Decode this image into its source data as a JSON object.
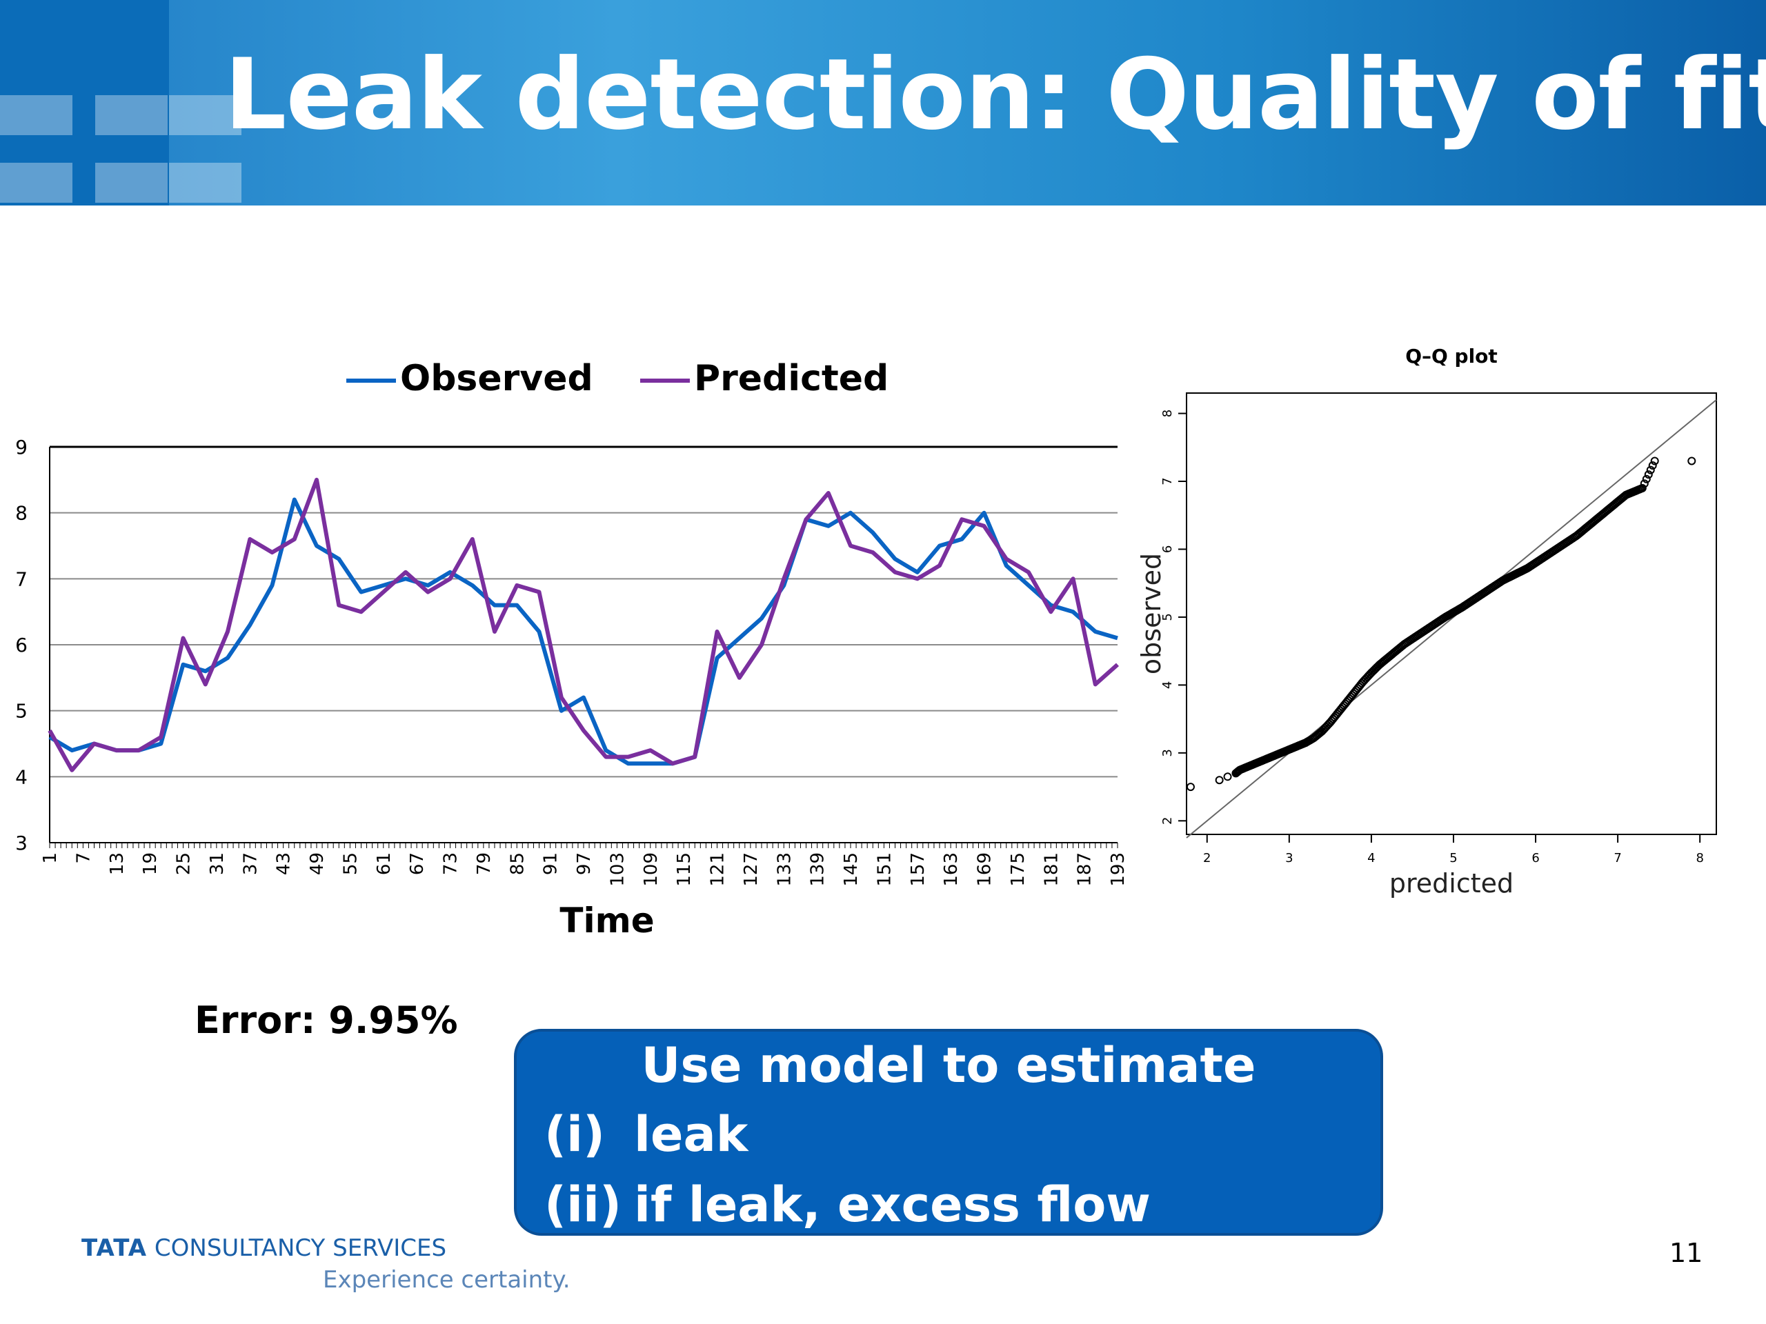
{
  "slide": {
    "title": "Leak detection: Quality of fit",
    "error_label": "Error: 9.95%",
    "callout": {
      "title": "Use model to estimate",
      "items": [
        {
          "num": "(i)",
          "text": "leak"
        },
        {
          "num": "(ii)",
          "text": "if leak, excess flow"
        }
      ]
    },
    "footer": {
      "brand_tata": "TATA",
      "brand_rest": "CONSULTANCY SERVICES",
      "tagline": "Experience certainty.",
      "page_number": "11"
    }
  },
  "colors": {
    "observed": "#0a64c4",
    "predicted": "#7a2f9e",
    "header_accent": "#1f7cc4",
    "callout_bg": "#0560b8"
  },
  "chart_data": [
    {
      "type": "line",
      "title": "",
      "xlabel": "Time",
      "ylabel": "",
      "legend": "top",
      "grid": true,
      "ylim": [
        3,
        9
      ],
      "yticks": [
        3,
        4,
        5,
        6,
        7,
        8,
        9
      ],
      "xtick_labels": [
        "1",
        "7",
        "13",
        "19",
        "25",
        "31",
        "37",
        "43",
        "49",
        "55",
        "61",
        "67",
        "73",
        "79",
        "85",
        "91",
        "97",
        "103",
        "109",
        "115",
        "121",
        "127",
        "133",
        "139",
        "145",
        "151",
        "157",
        "163",
        "169",
        "175",
        "181",
        "187",
        "193"
      ],
      "x": [
        1,
        5,
        9,
        13,
        17,
        21,
        25,
        29,
        33,
        37,
        41,
        45,
        49,
        53,
        57,
        61,
        65,
        69,
        73,
        77,
        81,
        85,
        89,
        93,
        97,
        101,
        105,
        109,
        113,
        117,
        121,
        125,
        129,
        133,
        137,
        141,
        145,
        149,
        153,
        157,
        161,
        165,
        169,
        173,
        177,
        181,
        185,
        189,
        193
      ],
      "series": [
        {
          "name": "Observed",
          "values": [
            4.6,
            4.4,
            4.5,
            4.4,
            4.4,
            4.5,
            5.7,
            5.6,
            5.8,
            6.3,
            6.9,
            8.2,
            7.5,
            7.3,
            6.8,
            6.9,
            7.0,
            6.9,
            7.1,
            6.9,
            6.6,
            6.6,
            6.2,
            5.0,
            5.2,
            4.4,
            4.2,
            4.2,
            4.2,
            4.3,
            5.8,
            6.1,
            6.4,
            6.9,
            7.9,
            7.8,
            8.0,
            7.7,
            7.3,
            7.1,
            7.5,
            7.6,
            8.0,
            7.2,
            6.9,
            6.6,
            6.5,
            6.2,
            6.1
          ]
        },
        {
          "name": "Predicted",
          "values": [
            4.7,
            4.1,
            4.5,
            4.4,
            4.4,
            4.6,
            6.1,
            5.4,
            6.2,
            7.6,
            7.4,
            7.6,
            8.5,
            6.6,
            6.5,
            6.8,
            7.1,
            6.8,
            7.0,
            7.6,
            6.2,
            6.9,
            6.8,
            5.2,
            4.7,
            4.3,
            4.3,
            4.4,
            4.2,
            4.3,
            6.2,
            5.5,
            6.0,
            7.0,
            7.9,
            8.3,
            7.5,
            7.4,
            7.1,
            7.0,
            7.2,
            7.9,
            7.8,
            7.3,
            7.1,
            6.5,
            7.0,
            5.4,
            5.7
          ]
        }
      ]
    },
    {
      "type": "scatter",
      "title": "Q–Q plot",
      "xlabel": "predicted",
      "ylabel": "observed",
      "xlim": [
        2,
        8
      ],
      "ylim": [
        2,
        8
      ],
      "xticks": [
        2,
        3,
        4,
        5,
        6,
        7,
        8
      ],
      "yticks": [
        2,
        3,
        4,
        5,
        6,
        7,
        8
      ],
      "reference_line": "y = x",
      "points": [
        [
          1.8,
          2.5
        ],
        [
          2.15,
          2.6
        ],
        [
          2.25,
          2.65
        ],
        [
          2.35,
          2.7
        ],
        [
          2.4,
          2.75
        ],
        [
          2.5,
          2.8
        ],
        [
          2.6,
          2.85
        ],
        [
          2.7,
          2.9
        ],
        [
          2.8,
          2.95
        ],
        [
          2.9,
          3.0
        ],
        [
          3.0,
          3.05
        ],
        [
          3.1,
          3.1
        ],
        [
          3.2,
          3.15
        ],
        [
          3.3,
          3.22
        ],
        [
          3.4,
          3.32
        ],
        [
          3.5,
          3.45
        ],
        [
          3.6,
          3.6
        ],
        [
          3.7,
          3.75
        ],
        [
          3.8,
          3.9
        ],
        [
          3.9,
          4.05
        ],
        [
          4.0,
          4.18
        ],
        [
          4.1,
          4.3
        ],
        [
          4.2,
          4.4
        ],
        [
          4.3,
          4.5
        ],
        [
          4.4,
          4.6
        ],
        [
          4.5,
          4.68
        ],
        [
          4.6,
          4.76
        ],
        [
          4.7,
          4.84
        ],
        [
          4.8,
          4.92
        ],
        [
          4.9,
          5.0
        ],
        [
          5.0,
          5.07
        ],
        [
          5.1,
          5.14
        ],
        [
          5.2,
          5.22
        ],
        [
          5.3,
          5.3
        ],
        [
          5.4,
          5.38
        ],
        [
          5.5,
          5.46
        ],
        [
          5.6,
          5.54
        ],
        [
          5.7,
          5.6
        ],
        [
          5.8,
          5.66
        ],
        [
          5.9,
          5.72
        ],
        [
          6.0,
          5.8
        ],
        [
          6.1,
          5.88
        ],
        [
          6.2,
          5.96
        ],
        [
          6.3,
          6.04
        ],
        [
          6.4,
          6.12
        ],
        [
          6.5,
          6.2
        ],
        [
          6.6,
          6.3
        ],
        [
          6.7,
          6.4
        ],
        [
          6.8,
          6.5
        ],
        [
          6.9,
          6.6
        ],
        [
          7.0,
          6.7
        ],
        [
          7.1,
          6.8
        ],
        [
          7.2,
          6.85
        ],
        [
          7.3,
          6.9
        ],
        [
          7.45,
          7.3
        ],
        [
          7.9,
          7.3
        ]
      ]
    }
  ]
}
